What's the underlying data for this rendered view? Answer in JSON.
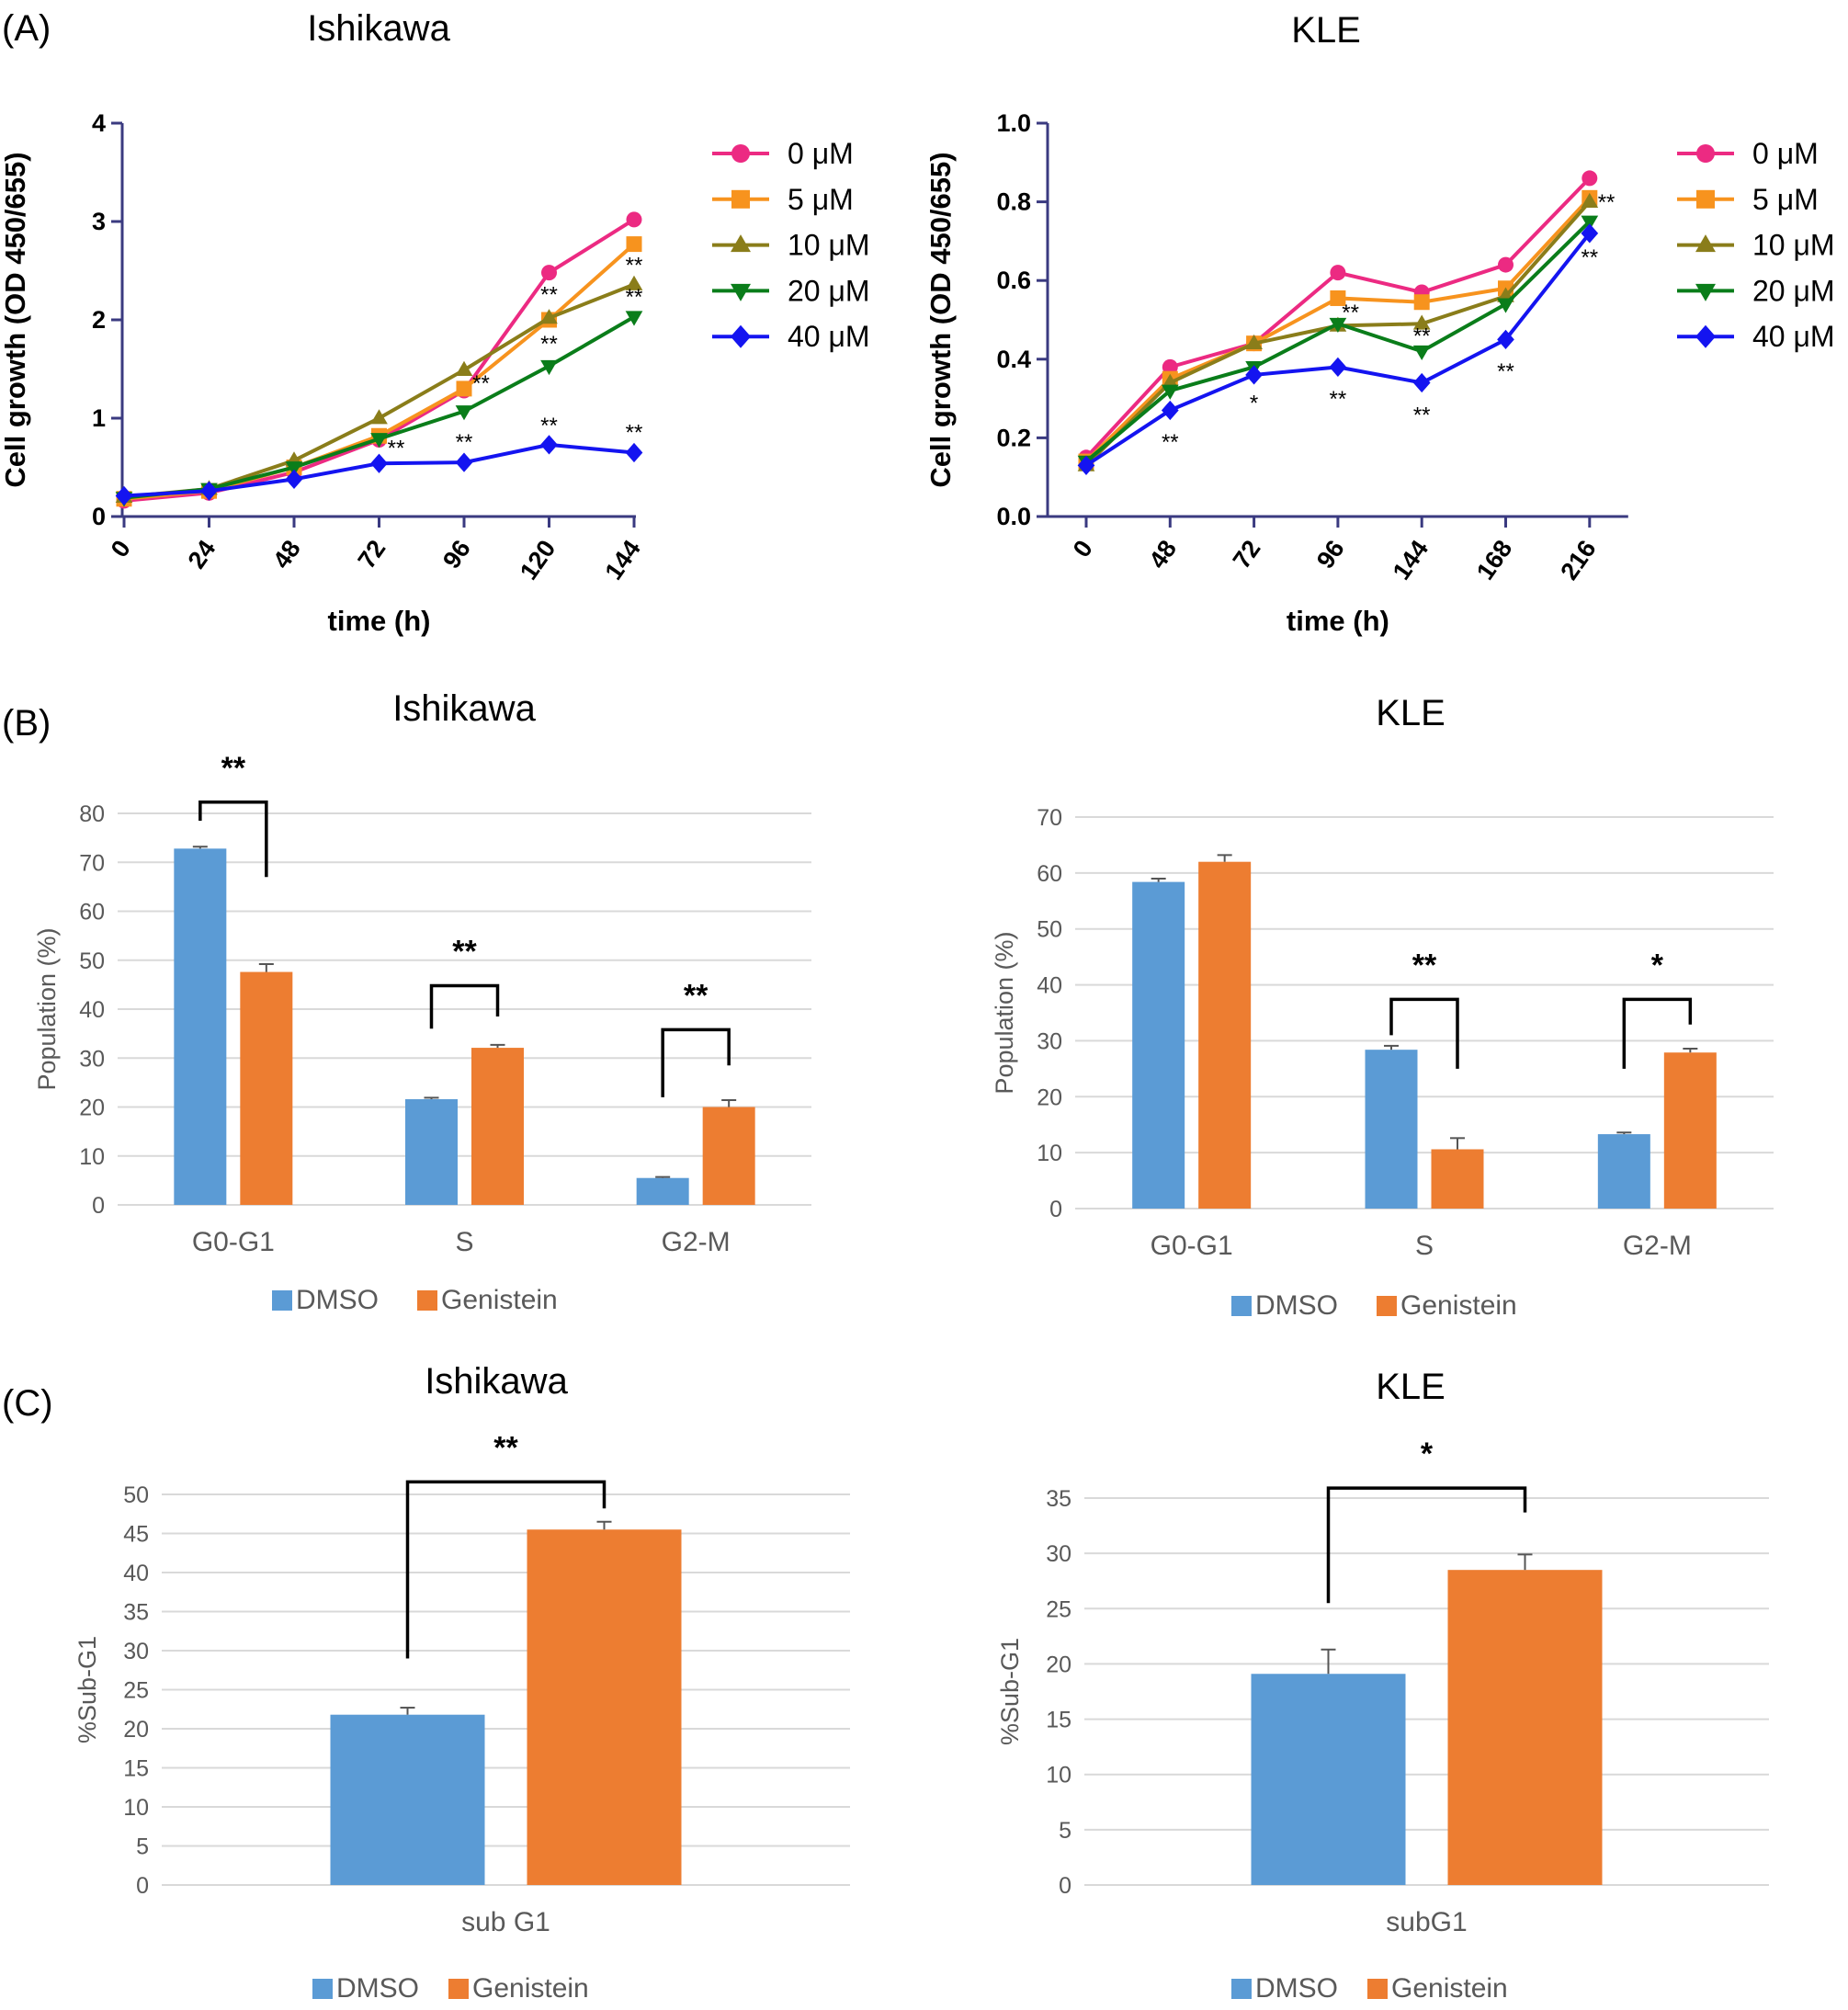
{
  "panel_labels": [
    "(A)",
    "(B)",
    "(C)"
  ],
  "colors": {
    "dmso": "#5B9BD5",
    "genistein": "#ED7D31",
    "c0": "#EC2A82",
    "c5": "#F7931E",
    "c10": "#8A7D1A",
    "c20": "#0A7D1A",
    "c40": "#1414F0",
    "axis_dark": "#3A3A80",
    "grid": "#D9D9D9",
    "text_grey": "#595959"
  },
  "chart_data": [
    {
      "id": "A-ishikawa",
      "type": "line",
      "title": "Ishikawa",
      "xlabel": "time (h)",
      "ylabel": "Cell growth (OD 450/655)",
      "x_categories": [
        "0",
        "24",
        "48",
        "72",
        "96",
        "120",
        "144"
      ],
      "ylim": [
        0,
        4
      ],
      "yticks": [
        "0",
        "1",
        "2",
        "3",
        "4"
      ],
      "series": [
        {
          "name": "0 μM",
          "marker": "circle",
          "color_key": "c0",
          "values": [
            0.16,
            0.24,
            0.45,
            0.78,
            1.28,
            2.48,
            3.02
          ]
        },
        {
          "name": "5 μM",
          "marker": "square",
          "color_key": "c5",
          "values": [
            0.18,
            0.26,
            0.5,
            0.82,
            1.3,
            2.0,
            2.77
          ]
        },
        {
          "name": "10 μM",
          "marker": "triangle-up",
          "color_key": "c10",
          "values": [
            0.2,
            0.28,
            0.57,
            1.0,
            1.49,
            2.02,
            2.36
          ]
        },
        {
          "name": "20 μM",
          "marker": "triangle-down",
          "color_key": "c20",
          "values": [
            0.19,
            0.28,
            0.5,
            0.79,
            1.07,
            1.53,
            2.03
          ]
        },
        {
          "name": "40 μM",
          "marker": "diamond",
          "color_key": "c40",
          "values": [
            0.21,
            0.26,
            0.38,
            0.54,
            0.55,
            0.73,
            0.65
          ]
        }
      ],
      "annotations": [
        {
          "text": "**",
          "xi": 5,
          "y": 2.18
        },
        {
          "text": "**",
          "xi": 6,
          "y": 2.48
        },
        {
          "text": "**",
          "xi": 6,
          "y": 2.16
        },
        {
          "text": "**",
          "xi": 5,
          "y": 1.68
        },
        {
          "text": "**",
          "xi": 4.2,
          "y": 1.28
        },
        {
          "text": "**",
          "xi": 3.2,
          "y": 0.62
        },
        {
          "text": "**",
          "xi": 4,
          "y": 0.68
        },
        {
          "text": "**",
          "xi": 5,
          "y": 0.85
        },
        {
          "text": "**",
          "xi": 6,
          "y": 0.78
        }
      ]
    },
    {
      "id": "A-kle",
      "type": "line",
      "title": "KLE",
      "xlabel": "time (h)",
      "ylabel": "Cell growth (OD 450/655)",
      "x_categories": [
        "0",
        "48",
        "72",
        "96",
        "144",
        "168",
        "216"
      ],
      "ylim": [
        0,
        1.0
      ],
      "yticks": [
        "0.0",
        "0.2",
        "0.4",
        "0.6",
        "0.8",
        "1.0"
      ],
      "series": [
        {
          "name": "0 μM",
          "marker": "circle",
          "color_key": "c0",
          "values": [
            0.15,
            0.38,
            0.44,
            0.62,
            0.57,
            0.64,
            0.86
          ]
        },
        {
          "name": "5 μM",
          "marker": "square",
          "color_key": "c5",
          "values": [
            0.14,
            0.35,
            0.44,
            0.555,
            0.545,
            0.58,
            0.81
          ]
        },
        {
          "name": "10 μM",
          "marker": "triangle-up",
          "color_key": "c10",
          "values": [
            0.13,
            0.34,
            0.44,
            0.485,
            0.49,
            0.56,
            0.8
          ]
        },
        {
          "name": "20 μM",
          "marker": "triangle-down",
          "color_key": "c20",
          "values": [
            0.14,
            0.32,
            0.38,
            0.49,
            0.42,
            0.54,
            0.75
          ]
        },
        {
          "name": "40 μM",
          "marker": "diamond",
          "color_key": "c40",
          "values": [
            0.13,
            0.27,
            0.36,
            0.38,
            0.34,
            0.45,
            0.72
          ]
        }
      ],
      "annotations": [
        {
          "text": "**",
          "xi": 6.2,
          "y": 0.78
        },
        {
          "text": "**",
          "xi": 6,
          "y": 0.64
        },
        {
          "text": "**",
          "xi": 3.15,
          "y": 0.5
        },
        {
          "text": "**",
          "xi": 4,
          "y": 0.44
        },
        {
          "text": "**",
          "xi": 1,
          "y": 0.17
        },
        {
          "text": "*",
          "xi": 2,
          "y": 0.27
        },
        {
          "text": "**",
          "xi": 3,
          "y": 0.28
        },
        {
          "text": "**",
          "xi": 4,
          "y": 0.24
        },
        {
          "text": "**",
          "xi": 5,
          "y": 0.35
        }
      ]
    },
    {
      "id": "B-ishikawa",
      "type": "bar",
      "title": "Ishikawa",
      "ylabel": "Population (%)",
      "categories": [
        "G0-G1",
        "S",
        "G2-M"
      ],
      "ylim": [
        0,
        80
      ],
      "yticks": [
        "0",
        "10",
        "20",
        "30",
        "40",
        "50",
        "60",
        "70",
        "80"
      ],
      "series": [
        {
          "name": "DMSO",
          "color_key": "dmso",
          "values": [
            72.8,
            21.6,
            5.5
          ],
          "errors": [
            0.4,
            0.3,
            0.2
          ]
        },
        {
          "name": "Genistein",
          "color_key": "genistein",
          "values": [
            47.6,
            32.1,
            20.0
          ],
          "errors": [
            1.6,
            0.6,
            1.4
          ]
        }
      ],
      "significance": [
        {
          "ci": 0,
          "label": "**",
          "y_bracket": 82.3,
          "left_y": 78.5,
          "right_y": 67.0
        },
        {
          "ci": 1,
          "label": "**",
          "y_bracket": 44.8,
          "left_y": 36.0,
          "right_y": 38.5
        },
        {
          "ci": 2,
          "label": "**",
          "y_bracket": 35.8,
          "left_y": 22.0,
          "right_y": 28.5
        }
      ]
    },
    {
      "id": "B-kle",
      "type": "bar",
      "title": "KLE",
      "ylabel": "Population (%)",
      "categories": [
        "G0-G1",
        "S",
        "G2-M"
      ],
      "ylim": [
        0,
        70
      ],
      "yticks": [
        "0",
        "10",
        "20",
        "30",
        "40",
        "50",
        "60",
        "70"
      ],
      "series": [
        {
          "name": "DMSO",
          "color_key": "dmso",
          "values": [
            58.4,
            28.4,
            13.3
          ],
          "errors": [
            0.6,
            0.7,
            0.3
          ]
        },
        {
          "name": "Genistein",
          "color_key": "genistein",
          "values": [
            62.0,
            10.6,
            27.9
          ],
          "errors": [
            1.2,
            2.0,
            0.7
          ]
        }
      ],
      "significance": [
        {
          "ci": 1,
          "label": "**",
          "y_bracket": 37.4,
          "left_y": 31.0,
          "right_y": 25.0
        },
        {
          "ci": 2,
          "label": "*",
          "y_bracket": 37.4,
          "left_y": 25.0,
          "right_y": 32.9
        }
      ]
    },
    {
      "id": "C-ishikawa",
      "type": "bar",
      "title": "Ishikawa",
      "ylabel": "%Sub-G1",
      "categories": [
        "sub G1"
      ],
      "ylim": [
        0,
        50
      ],
      "yticks": [
        "0",
        "5",
        "10",
        "15",
        "20",
        "25",
        "30",
        "35",
        "40",
        "45",
        "50"
      ],
      "series": [
        {
          "name": "DMSO",
          "color_key": "dmso",
          "values": [
            21.8
          ],
          "errors": [
            0.9
          ]
        },
        {
          "name": "Genistein",
          "color_key": "genistein",
          "values": [
            45.5
          ],
          "errors": [
            1.0
          ]
        }
      ],
      "significance": [
        {
          "ci": 0,
          "label": "**",
          "y_bracket": 51.6,
          "left_y": 29.0,
          "right_y": 48.2
        }
      ]
    },
    {
      "id": "C-kle",
      "type": "bar",
      "title": "KLE",
      "ylabel": "%Sub-G1",
      "categories": [
        "subG1"
      ],
      "ylim": [
        0,
        35
      ],
      "yticks": [
        "0",
        "5",
        "10",
        "15",
        "20",
        "25",
        "30",
        "35"
      ],
      "series": [
        {
          "name": "DMSO",
          "color_key": "dmso",
          "values": [
            19.1
          ],
          "errors": [
            2.2
          ]
        },
        {
          "name": "Genistein",
          "color_key": "genistein",
          "values": [
            28.5
          ],
          "errors": [
            1.4
          ]
        }
      ],
      "significance": [
        {
          "ci": 0,
          "label": "*",
          "y_bracket": 35.9,
          "left_y": 25.5,
          "right_y": 33.7
        }
      ]
    }
  ]
}
